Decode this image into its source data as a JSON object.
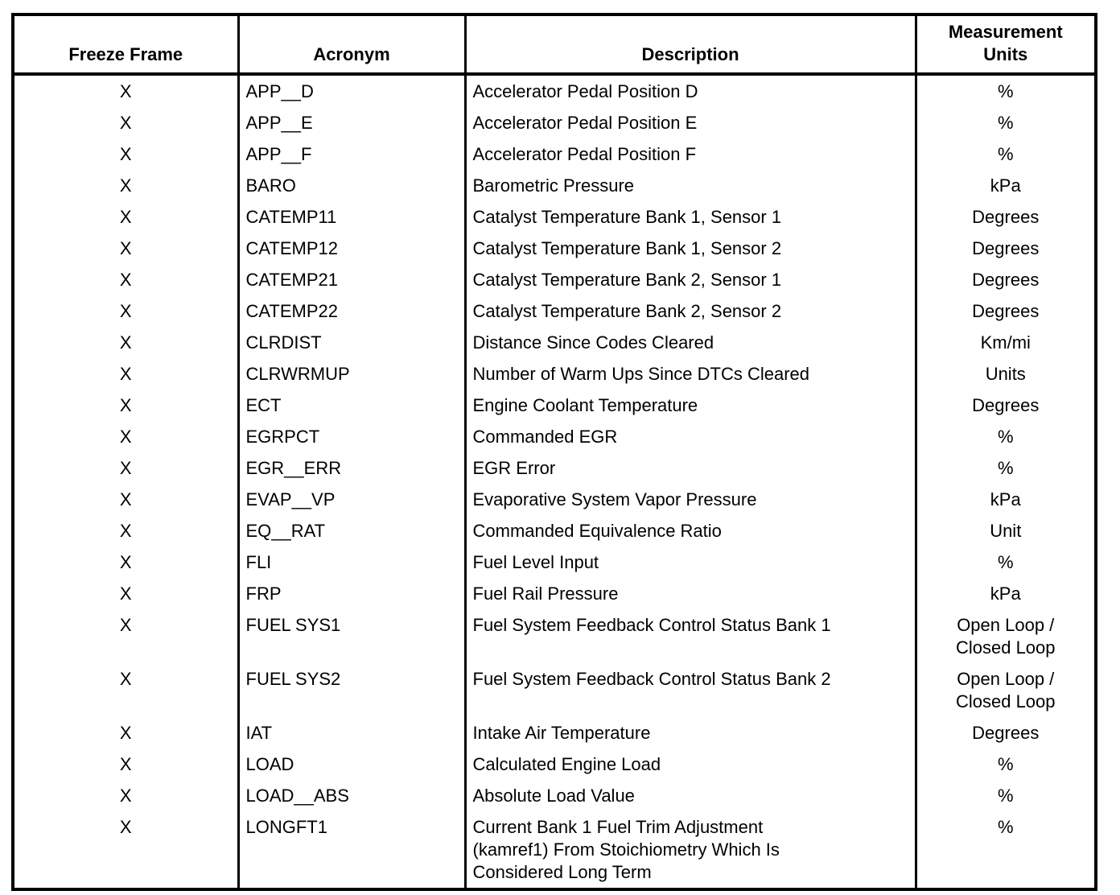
{
  "colors": {
    "background": "#ffffff",
    "text": "#000000",
    "border": "#000000"
  },
  "table": {
    "headers": {
      "freeze_frame": "Freeze Frame",
      "acronym": "Acronym",
      "description": "Description",
      "measurement_units": "Measurement\nUnits"
    },
    "rows": [
      {
        "freeze_frame": "X",
        "acronym": "APP__D",
        "description": "Accelerator Pedal Position D",
        "units": "%"
      },
      {
        "freeze_frame": "X",
        "acronym": "APP__E",
        "description": "Accelerator Pedal Position E",
        "units": "%"
      },
      {
        "freeze_frame": "X",
        "acronym": "APP__F",
        "description": "Accelerator Pedal Position F",
        "units": "%"
      },
      {
        "freeze_frame": "X",
        "acronym": "BARO",
        "description": "Barometric Pressure",
        "units": "kPa"
      },
      {
        "freeze_frame": "X",
        "acronym": "CATEMP11",
        "description": "Catalyst Temperature Bank 1, Sensor 1",
        "units": "Degrees"
      },
      {
        "freeze_frame": "X",
        "acronym": "CATEMP12",
        "description": "Catalyst Temperature Bank 1, Sensor 2",
        "units": "Degrees"
      },
      {
        "freeze_frame": "X",
        "acronym": "CATEMP21",
        "description": "Catalyst Temperature Bank 2, Sensor 1",
        "units": "Degrees"
      },
      {
        "freeze_frame": "X",
        "acronym": "CATEMP22",
        "description": "Catalyst Temperature Bank 2, Sensor 2",
        "units": "Degrees"
      },
      {
        "freeze_frame": "X",
        "acronym": "CLRDIST",
        "description": "Distance Since Codes Cleared",
        "units": "Km/mi"
      },
      {
        "freeze_frame": "X",
        "acronym": "CLRWRMUP",
        "description": "Number of Warm Ups Since DTCs Cleared",
        "units": "Units"
      },
      {
        "freeze_frame": "X",
        "acronym": "ECT",
        "description": "Engine Coolant Temperature",
        "units": "Degrees"
      },
      {
        "freeze_frame": "X",
        "acronym": "EGRPCT",
        "description": "Commanded EGR",
        "units": "%"
      },
      {
        "freeze_frame": "X",
        "acronym": "EGR__ERR",
        "description": "EGR Error",
        "units": "%"
      },
      {
        "freeze_frame": "X",
        "acronym": "EVAP__VP",
        "description": "Evaporative System Vapor Pressure",
        "units": "kPa"
      },
      {
        "freeze_frame": "X",
        "acronym": "EQ__RAT",
        "description": "Commanded Equivalence Ratio",
        "units": "Unit"
      },
      {
        "freeze_frame": "X",
        "acronym": "FLI",
        "description": "Fuel Level Input",
        "units": "%"
      },
      {
        "freeze_frame": "X",
        "acronym": "FRP",
        "description": "Fuel Rail Pressure",
        "units": "kPa"
      },
      {
        "freeze_frame": "X",
        "acronym": "FUEL SYS1",
        "description": "Fuel System Feedback Control Status Bank 1",
        "units": "Open Loop /\nClosed Loop"
      },
      {
        "freeze_frame": "X",
        "acronym": "FUEL SYS2",
        "description": "Fuel System Feedback Control Status Bank 2",
        "units": "Open Loop /\nClosed Loop"
      },
      {
        "freeze_frame": "X",
        "acronym": "IAT",
        "description": "Intake Air Temperature",
        "units": "Degrees"
      },
      {
        "freeze_frame": "X",
        "acronym": "LOAD",
        "description": "Calculated Engine Load",
        "units": "%"
      },
      {
        "freeze_frame": "X",
        "acronym": "LOAD__ABS",
        "description": "Absolute Load Value",
        "units": "%"
      },
      {
        "freeze_frame": "X",
        "acronym": "LONGFT1",
        "description": "Current Bank 1 Fuel Trim Adjustment\n(kamref1) From Stoichiometry Which Is\nConsidered Long Term",
        "units": "%"
      }
    ]
  }
}
